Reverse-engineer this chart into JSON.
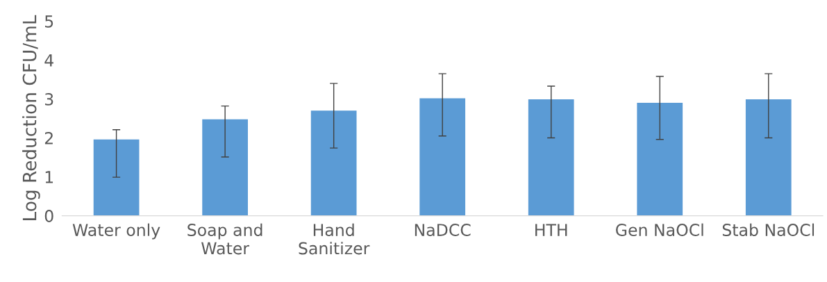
{
  "chart_data": {
    "type": "bar",
    "ylabel": "Log Reduction CFU/mL",
    "categories": [
      "Water only",
      "Soap and\nWater",
      "Hand\nSanitizer",
      "NaDCC",
      "HTH",
      "Gen NaOCl",
      "Stab NaOCl"
    ],
    "values": [
      1.96,
      2.48,
      2.7,
      3.02,
      2.99,
      2.9,
      2.99
    ],
    "errors": [
      [
        0.99,
        2.21
      ],
      [
        1.51,
        2.82
      ],
      [
        1.74,
        3.4
      ],
      [
        2.05,
        3.65
      ],
      [
        2.0,
        3.33
      ],
      [
        1.96,
        3.58
      ],
      [
        2.0,
        3.65
      ]
    ],
    "color": "#5b9bd5",
    "ylim": [
      0,
      5
    ],
    "yticks": [
      0,
      1,
      2,
      3,
      4,
      5
    ],
    "grid": false,
    "legend": false
  }
}
